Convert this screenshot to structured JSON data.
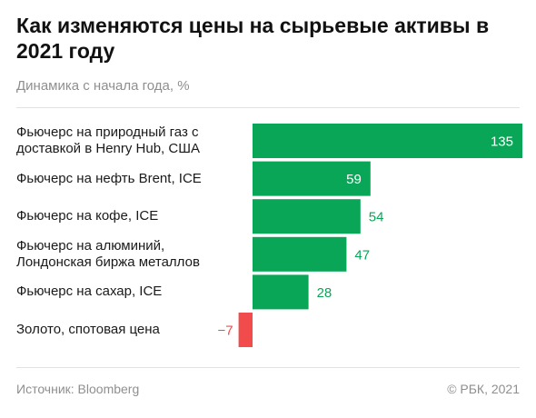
{
  "header": {
    "title": "Как изменяются цены на сырьевые активы в 2021 году",
    "subtitle": "Динамика с начала года, %"
  },
  "footer": {
    "source": "Источник:  Bloomberg",
    "copyright": "© РБК, 2021"
  },
  "colors": {
    "positive": "#0aa657",
    "negative": "#f24b4b",
    "positive_label": "#0aa657",
    "negative_label": "#f24b4b",
    "inside_label": "#ffffff"
  },
  "chart_data": {
    "type": "bar",
    "orientation": "horizontal",
    "title": "Как изменяются цены на сырьевые активы в 2021 году",
    "subtitle": "Динамика с начала года, %",
    "categories": [
      "Фьючерс на природный газ с доставкой в Henry Hub, США",
      "Фьючерс на нефть Brent, ICE",
      "Фьючерс на кофе, ICE",
      "Фьючерс на алюминий, Лондонская биржа металлов",
      "Фьючерс на сахар, ICE",
      "Золото, спотовая цена"
    ],
    "values": [
      135,
      59,
      54,
      47,
      28,
      -7
    ],
    "value_labels": [
      "135",
      "59",
      "54",
      "47",
      "28",
      "−7"
    ],
    "xlim": [
      -7,
      135
    ],
    "grid": false,
    "legend": "none"
  }
}
